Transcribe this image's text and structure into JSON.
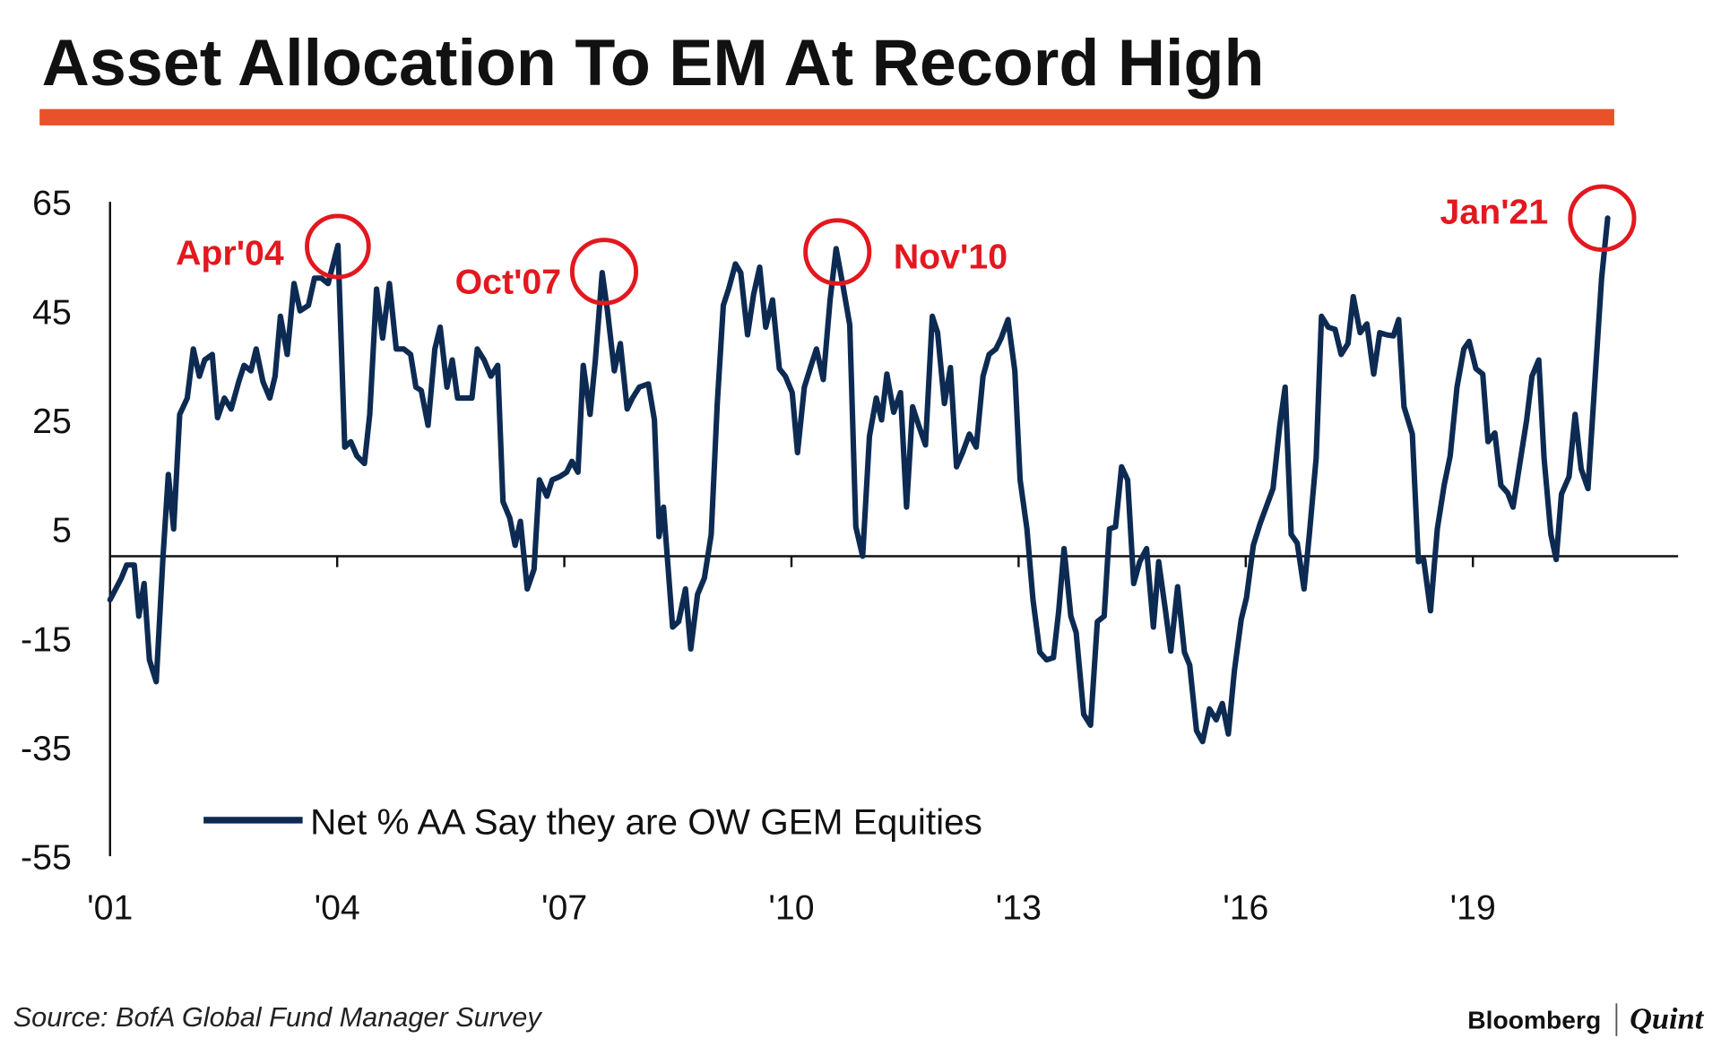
{
  "chart_data": {
    "type": "line",
    "title": "Asset Allocation To EM At Record High",
    "source": "Source: BofA Global Fund Manager Survey",
    "brand": [
      "Bloomberg",
      "Quint"
    ],
    "annotations": [
      "Apr'04",
      "Oct'07",
      "Nov'10",
      "Jan'21"
    ],
    "xlim": [
      2001,
      2021.71
    ],
    "xticks": [
      {
        "value": 2001,
        "label": "'01"
      },
      {
        "value": 2004,
        "label": "'04"
      },
      {
        "value": 2007,
        "label": "'07"
      },
      {
        "value": 2010,
        "label": "'10"
      },
      {
        "value": 2013,
        "label": "'13"
      },
      {
        "value": 2016,
        "label": "'16"
      },
      {
        "value": 2019,
        "label": "'19"
      }
    ],
    "ylim": [
      -55,
      65
    ],
    "yticks": [
      65,
      45,
      25,
      5,
      -15,
      -35,
      -55
    ],
    "x": [
      2001,
      2001.15,
      2001.22,
      2001.32,
      2001.38,
      2001.45,
      2001.52,
      2001.61,
      2001.7,
      2001.77,
      2001.84,
      2001.92,
      2002.02,
      2002.1,
      2002.18,
      2002.25,
      2002.35,
      2002.42,
      2002.51,
      2002.6,
      2002.7,
      2002.77,
      2002.86,
      2002.93,
      2003.02,
      2003.11,
      2003.18,
      2003.25,
      2003.34,
      2003.43,
      2003.51,
      2003.62,
      2003.7,
      2003.79,
      2003.88,
      2004.01,
      2004.1,
      2004.18,
      2004.26,
      2004.36,
      2004.43,
      2004.52,
      2004.6,
      2004.69,
      2004.78,
      2004.88,
      2004.97,
      2005.04,
      2005.11,
      2005.2,
      2005.29,
      2005.36,
      2005.45,
      2005.52,
      2005.59,
      2005.69,
      2005.78,
      2005.85,
      2005.94,
      2006.03,
      2006.12,
      2006.19,
      2006.28,
      2006.35,
      2006.42,
      2006.51,
      2006.6,
      2006.67,
      2006.77,
      2006.84,
      2006.94,
      2007.03,
      2007.1,
      2007.18,
      2007.25,
      2007.34,
      2007.41,
      2007.5,
      2007.57,
      2007.66,
      2007.74,
      2007.83,
      2007.9,
      2007.99,
      2008.11,
      2008.19,
      2008.25,
      2008.31,
      2008.43,
      2008.51,
      2008.6,
      2008.67,
      2008.76,
      2008.85,
      2008.94,
      2009.02,
      2009.1,
      2009.17,
      2009.26,
      2009.33,
      2009.42,
      2009.5,
      2009.58,
      2009.66,
      2009.75,
      2009.84,
      2009.92,
      2010.01,
      2010.08,
      2010.17,
      2010.26,
      2010.33,
      2010.42,
      2010.51,
      2010.59,
      2010.68,
      2010.77,
      2010.85,
      2010.94,
      2011.03,
      2011.12,
      2011.19,
      2011.26,
      2011.35,
      2011.44,
      2011.52,
      2011.6,
      2011.68,
      2011.77,
      2011.86,
      2011.93,
      2012.02,
      2012.1,
      2012.18,
      2012.26,
      2012.35,
      2012.44,
      2012.53,
      2012.61,
      2012.7,
      2012.77,
      2012.86,
      2012.95,
      2013.02,
      2013.11,
      2013.19,
      2013.28,
      2013.37,
      2013.46,
      2013.53,
      2013.6,
      2013.69,
      2013.76,
      2013.86,
      2013.95,
      2014.04,
      2014.13,
      2014.2,
      2014.28,
      2014.36,
      2014.44,
      2014.52,
      2014.6,
      2014.69,
      2014.78,
      2014.85,
      2014.94,
      2015.01,
      2015.1,
      2015.19,
      2015.26,
      2015.35,
      2015.43,
      2015.52,
      2015.61,
      2015.69,
      2015.77,
      2015.85,
      2015.94,
      2016.01,
      2016.1,
      2016.19,
      2016.28,
      2016.36,
      2016.45,
      2016.52,
      2016.6,
      2016.68,
      2016.77,
      2016.84,
      2016.93,
      2017,
      2017.09,
      2017.18,
      2017.26,
      2017.35,
      2017.42,
      2017.51,
      2017.6,
      2017.69,
      2017.77,
      2017.86,
      2017.95,
      2018.02,
      2018.09,
      2018.2,
      2018.28,
      2018.35,
      2018.44,
      2018.53,
      2018.62,
      2018.7,
      2018.79,
      2018.88,
      2018.95,
      2019.04,
      2019.13,
      2019.2,
      2019.29,
      2019.37,
      2019.46,
      2019.53,
      2019.62,
      2019.71,
      2019.78,
      2019.87,
      2019.94,
      2020.03,
      2020.1,
      2020.17,
      2020.27,
      2020.35,
      2020.43,
      2020.52,
      2020.62,
      2020.7,
      2020.78
    ],
    "series": [
      {
        "name": "Net % AA Say they are OW GEM Equities",
        "color": "#0d2b52",
        "values": [
          -8,
          -4,
          -1.6,
          -1.6,
          -11,
          -5,
          -19,
          -23,
          0,
          15,
          5,
          26,
          29,
          38,
          33,
          36,
          37,
          25.4,
          29,
          27,
          32,
          35,
          34,
          38,
          32,
          29,
          33,
          44,
          37,
          50,
          45,
          46,
          51,
          51,
          50,
          57,
          20,
          21,
          18.4,
          17,
          26,
          49,
          40,
          50,
          38,
          38,
          37,
          31,
          30.4,
          24,
          38,
          42,
          31,
          36,
          29,
          29,
          29,
          38,
          36,
          33,
          35,
          10,
          7,
          2,
          6.4,
          -6,
          -2.4,
          14,
          11,
          14,
          14.6,
          15.4,
          17.4,
          15.4,
          35,
          26,
          36,
          52,
          45,
          34,
          39,
          27,
          29,
          31,
          31.6,
          25,
          3.6,
          9,
          -13,
          -12,
          -6,
          -17,
          -7,
          -4,
          4,
          28,
          46,
          49,
          53.6,
          52,
          40.6,
          48,
          53,
          42,
          47,
          34.4,
          33,
          30,
          19,
          31,
          35,
          38,
          32.4,
          47,
          56.4,
          49.6,
          42.4,
          5.4,
          0,
          22,
          29,
          25,
          33.4,
          26.4,
          30,
          9,
          27.4,
          24,
          20.4,
          44,
          41,
          28,
          34.6,
          16.4,
          19,
          22.4,
          20,
          33,
          37,
          38,
          40,
          43.4,
          34,
          14,
          5,
          -8,
          -17.6,
          -19,
          -18.6,
          -10,
          1.4,
          -11,
          -14,
          -29,
          -31,
          -12,
          -11,
          5,
          5.4,
          16.4,
          14,
          -5,
          -1,
          1.4,
          -13,
          -1,
          -10,
          -17.4,
          -5.6,
          -17.6,
          -20,
          -32,
          -34,
          -28,
          -30,
          -27,
          -32.6,
          -21,
          -11.6,
          -7.6,
          2,
          6,
          9.4,
          12.4,
          24,
          31,
          4,
          2.4,
          -6,
          4,
          18,
          44,
          42,
          41.6,
          37,
          39,
          47.6,
          41,
          42.6,
          33.4,
          41,
          40.6,
          40.4,
          43.4,
          27.4,
          22.4,
          -1,
          -0.6,
          -10,
          5,
          13,
          18.4,
          31,
          38,
          39.4,
          34.4,
          33.4,
          21,
          22.6,
          13,
          11.6,
          9,
          17,
          25,
          33,
          36,
          18,
          4,
          -0.6,
          11.4,
          14.6,
          26,
          16,
          12.4,
          34,
          51,
          62
        ]
      }
    ]
  }
}
